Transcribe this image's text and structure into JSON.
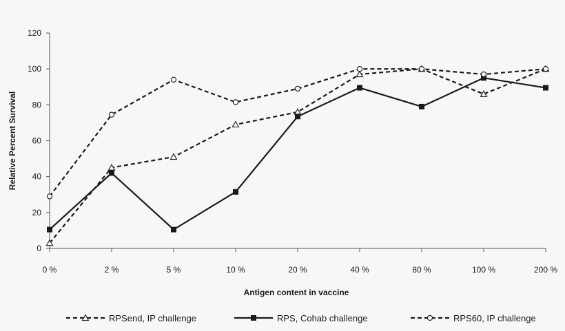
{
  "chart_data": {
    "type": "line",
    "categories": [
      "0 %",
      "2 %",
      "5 %",
      "10 %",
      "20 %",
      "40 %",
      "80 %",
      "100 %",
      "200 %"
    ],
    "xlabel": "Antigen content in vaccine",
    "ylabel": "Relative Percent Survival",
    "ylim": [
      0,
      120
    ],
    "yticks": [
      0,
      20,
      40,
      60,
      80,
      100,
      120
    ],
    "grid": false,
    "legend_position": "bottom",
    "series": [
      {
        "name": "RPSend, IP challenge",
        "values": [
          3,
          45,
          51,
          69,
          76,
          97,
          100,
          86,
          100
        ],
        "line_style": "dashed",
        "marker": "open-triangle",
        "color": "#1a1a1a"
      },
      {
        "name": "RPS, Cohab challenge",
        "values": [
          10.5,
          42,
          10.5,
          31.5,
          73.5,
          89.5,
          79,
          95,
          89.5
        ],
        "line_style": "solid",
        "marker": "filled-square",
        "color": "#1a1a1a"
      },
      {
        "name": "RPS60, IP challenge",
        "values": [
          29,
          74.5,
          94,
          81.5,
          89,
          100,
          100,
          97,
          100
        ],
        "line_style": "dashed",
        "marker": "open-circle",
        "color": "#1a1a1a"
      }
    ]
  }
}
